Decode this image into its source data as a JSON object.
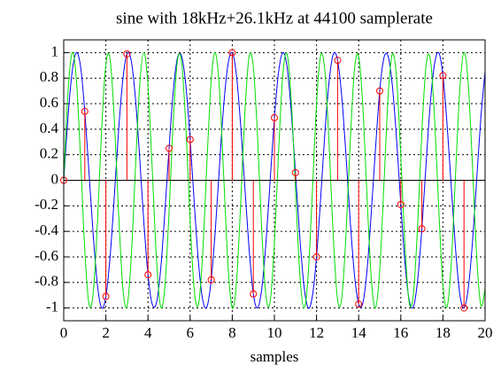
{
  "chart_data": {
    "type": "line",
    "title": "sine with 18kHz+26.1kHz at 44100 samplerate",
    "x_label": "samples",
    "x": [
      0,
      0.2,
      0.4,
      0.6,
      0.8,
      1,
      1.2,
      1.4,
      1.6,
      1.8,
      2,
      2.2,
      2.4,
      2.6,
      2.8,
      3,
      3.2,
      3.4,
      3.6,
      3.8,
      4,
      4.2,
      4.4,
      4.6,
      4.8,
      5,
      5.2,
      5.4,
      5.6,
      5.8,
      6,
      6.2,
      6.4,
      6.6,
      6.8,
      7,
      7.2,
      7.4,
      7.6,
      7.8,
      8,
      8.2,
      8.4,
      8.6,
      8.8,
      9,
      9.2,
      9.4,
      9.6,
      9.8,
      10,
      10.2,
      10.4,
      10.6,
      10.8,
      11,
      11.2,
      11.4,
      11.6,
      11.8,
      12,
      12.2,
      12.4,
      12.6,
      12.8,
      13,
      13.2,
      13.4,
      13.6,
      13.8,
      14,
      14.2,
      14.4,
      14.6,
      14.8,
      15,
      15.2,
      15.4,
      15.6,
      15.8,
      16,
      16.2,
      16.4,
      16.6,
      16.8,
      17,
      17.2,
      17.4,
      17.6,
      17.8,
      18,
      18.2,
      18.4,
      18.6,
      18.8,
      19,
      19.2,
      19.4,
      19.6,
      19.8,
      20
    ],
    "series": [
      {
        "color": "#0000ff",
        "values": [
          0,
          0.49,
          0.85,
          1.0,
          0.89,
          0.54,
          0.06,
          -0.43,
          -0.82,
          -1.0,
          -0.91,
          -0.6,
          -0.13,
          0.38,
          0.78,
          0.99,
          0.94,
          0.65,
          0.19,
          -0.32,
          -0.74,
          -0.97,
          -0.96,
          -0.7,
          -0.25,
          0.25,
          0.7,
          0.96,
          0.97,
          0.74,
          0.32,
          -0.19,
          -0.65,
          -0.94,
          -0.99,
          -0.78,
          -0.38,
          0.13,
          0.6,
          0.91,
          1.0,
          0.82,
          0.43,
          -0.06,
          -0.54,
          -0.89,
          -1.0,
          -0.85,
          -0.49,
          0,
          0.49,
          0.85,
          1.0,
          0.89,
          0.54,
          0.06,
          -0.43,
          -0.82,
          -1.0,
          -0.91,
          -0.6,
          -0.13,
          0.38,
          0.78,
          0.99,
          0.94,
          0.65,
          0.19,
          -0.32,
          -0.74,
          -0.97,
          -0.96,
          -0.7,
          -0.25,
          0.25,
          0.7,
          0.96,
          0.97,
          0.74,
          0.32,
          -0.19,
          -0.65,
          -0.94,
          -0.99,
          -0.78,
          -0.38,
          0.13,
          0.6,
          0.91,
          1.0,
          0.82,
          0.43,
          -0.06,
          -0.54,
          -0.89,
          -1.0,
          -0.85,
          -0.49,
          0,
          0.49,
          0.85
        ]
      },
      {
        "color": "#00e000",
        "values": [
          0,
          0.68,
          1.0,
          0.79,
          0.17,
          -0.55,
          -0.97,
          -0.88,
          -0.33,
          0.4,
          0.91,
          0.95,
          0.48,
          -0.24,
          -0.83,
          -0.99,
          -0.62,
          0.08,
          0.73,
          1.0,
          0.74,
          0.09,
          -0.61,
          -0.99,
          -0.84,
          -0.25,
          0.47,
          0.94,
          0.92,
          0.41,
          -0.32,
          -0.87,
          -0.97,
          -0.56,
          0.15,
          0.78,
          1.0,
          0.69,
          0.01,
          -0.67,
          -1.0,
          -0.8,
          -0.18,
          0.53,
          0.97,
          0.89,
          0.34,
          -0.39,
          -0.91,
          -0.95,
          -0.49,
          0.23,
          0.83,
          0.99,
          0.63,
          -0.06,
          -0.72,
          -1.0,
          -0.75,
          -0.1,
          0.6,
          0.98,
          0.85,
          0.27,
          -0.46,
          -0.94,
          -0.92,
          -0.42,
          0.3,
          0.87,
          0.97,
          0.57,
          -0.14,
          -0.77,
          -1.0,
          -0.7,
          -0.03,
          0.66,
          0.99,
          0.8,
          0.19,
          -0.52,
          -0.96,
          -0.89,
          -0.35,
          0.38,
          0.9,
          0.95,
          0.5,
          -0.22,
          -0.82,
          -0.99,
          -0.64,
          0.05,
          0.71,
          1.0,
          0.76,
          0.12,
          -0.59,
          -0.98,
          -0.85
        ]
      },
      {
        "type": "stem",
        "color": "#ff0000",
        "x": [
          0,
          1,
          2,
          3,
          4,
          5,
          6,
          7,
          8,
          9,
          10,
          11,
          12,
          13,
          14,
          15,
          16,
          17,
          18,
          19
        ],
        "values": [
          0,
          0.54,
          -0.91,
          0.99,
          -0.74,
          0.25,
          0.32,
          -0.78,
          1.0,
          -0.89,
          0.49,
          0.06,
          -0.6,
          0.94,
          -0.97,
          0.7,
          -0.19,
          -0.38,
          0.82,
          -1.0
        ]
      }
    ],
    "xlim": [
      0,
      20
    ],
    "xticks": [
      0,
      2,
      4,
      6,
      8,
      10,
      12,
      14,
      16,
      18,
      20
    ],
    "ylim": [
      -1.1,
      1.1
    ],
    "yticks": [
      -1,
      -0.8,
      -0.6,
      -0.4,
      -0.2,
      0,
      0.2,
      0.4,
      0.6,
      0.8,
      1
    ],
    "grid": true
  }
}
